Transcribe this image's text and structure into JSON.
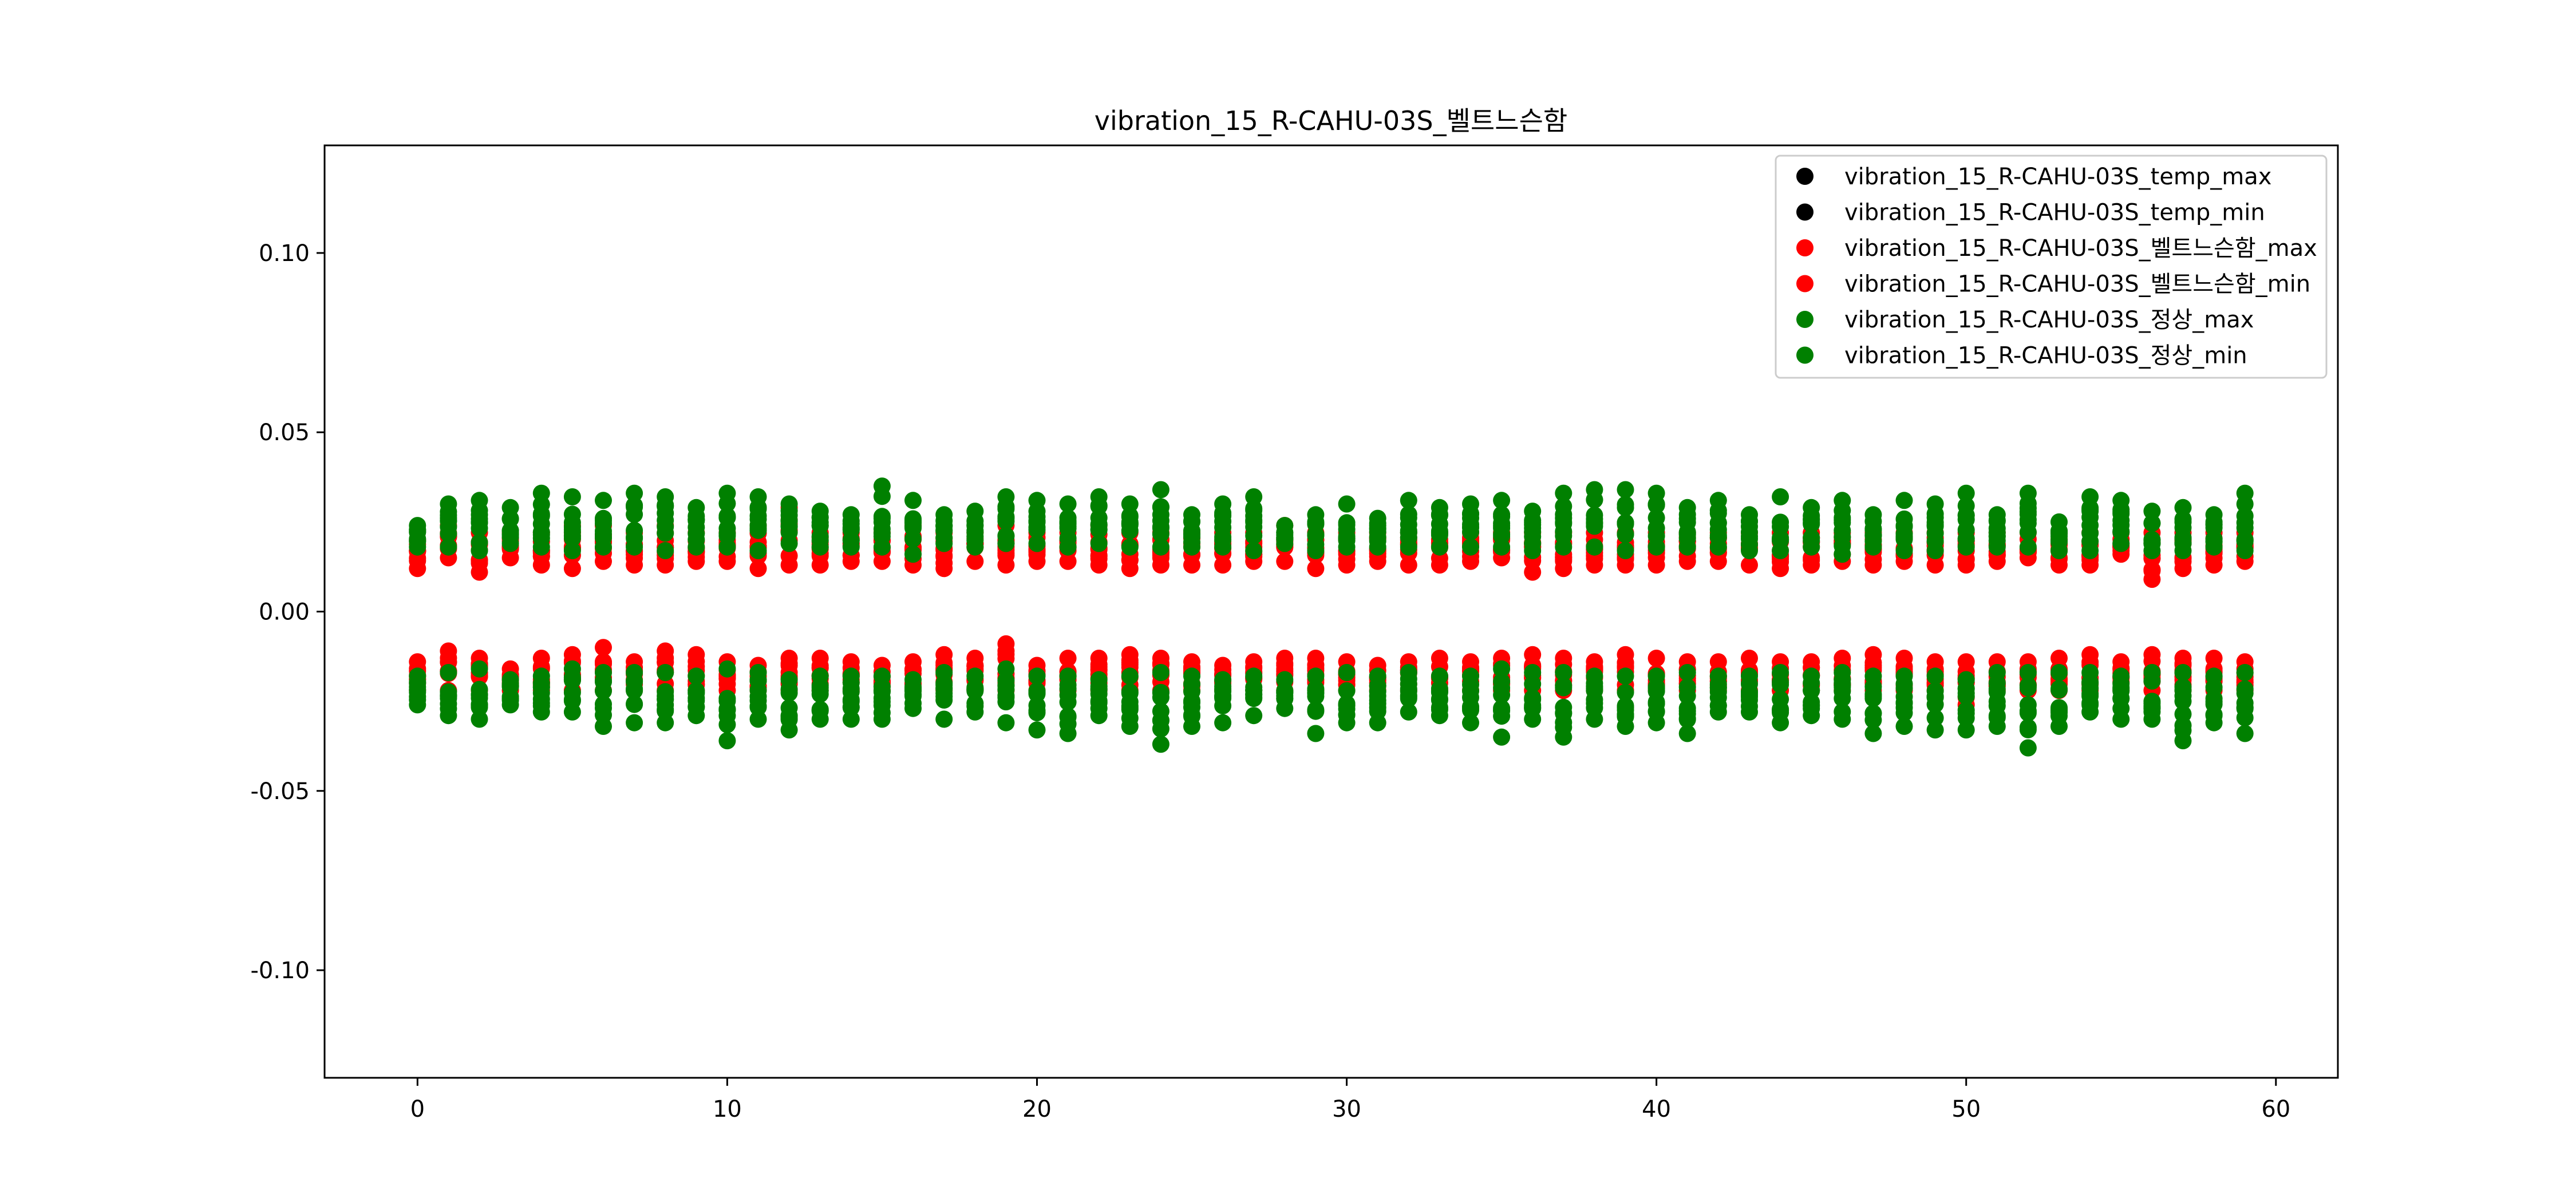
{
  "chart_data": {
    "type": "scatter",
    "title": "vibration_15_R-CAHU-03S_벨트느슨함",
    "xlabel": "",
    "ylabel": "",
    "xlim": [
      -3,
      62
    ],
    "ylim": [
      -0.13,
      0.13
    ],
    "xticks": [
      0,
      10,
      20,
      30,
      40,
      50,
      60
    ],
    "yticks": [
      0.1,
      0.05,
      0.0,
      -0.05,
      -0.1
    ],
    "ytick_labels": [
      "0.10",
      "0.05",
      "0.00",
      "-0.05",
      "-0.10"
    ],
    "grid": false,
    "legend_placement": "upper right",
    "x": [
      0,
      1,
      2,
      3,
      4,
      5,
      6,
      7,
      8,
      9,
      10,
      11,
      12,
      13,
      14,
      15,
      16,
      17,
      18,
      19,
      20,
      21,
      22,
      23,
      24,
      25,
      26,
      27,
      28,
      29,
      30,
      31,
      32,
      33,
      34,
      35,
      36,
      37,
      38,
      39,
      40,
      41,
      42,
      43,
      44,
      45,
      46,
      47,
      48,
      49,
      50,
      51,
      52,
      53,
      54,
      55,
      56,
      57,
      58,
      59
    ],
    "series": [
      {
        "name": "vibration_15_R-CAHU-03S_temp_max",
        "color": "#000000",
        "role": "temp",
        "values": []
      },
      {
        "name": "vibration_15_R-CAHU-03S_temp_min",
        "color": "#000000",
        "role": "temp",
        "values": []
      },
      {
        "name": "vibration_15_R-CAHU-03S_벨트느슨함_max",
        "color": "#ff0000",
        "role": "fault_max",
        "ranges": [
          [
            0.012,
            0.02
          ],
          [
            0.015,
            0.024
          ],
          [
            0.011,
            0.022
          ],
          [
            0.015,
            0.022
          ],
          [
            0.013,
            0.022
          ],
          [
            0.012,
            0.024
          ],
          [
            0.014,
            0.024
          ],
          [
            0.013,
            0.022
          ],
          [
            0.013,
            0.024
          ],
          [
            0.014,
            0.022
          ],
          [
            0.014,
            0.022
          ],
          [
            0.012,
            0.024
          ],
          [
            0.013,
            0.029
          ],
          [
            0.013,
            0.022
          ],
          [
            0.014,
            0.022
          ],
          [
            0.014,
            0.022
          ],
          [
            0.013,
            0.024
          ],
          [
            0.012,
            0.022
          ],
          [
            0.014,
            0.022
          ],
          [
            0.013,
            0.024
          ],
          [
            0.014,
            0.022
          ],
          [
            0.014,
            0.022
          ],
          [
            0.013,
            0.024
          ],
          [
            0.012,
            0.022
          ],
          [
            0.013,
            0.022
          ],
          [
            0.013,
            0.022
          ],
          [
            0.013,
            0.022
          ],
          [
            0.014,
            0.022
          ],
          [
            0.014,
            0.024
          ],
          [
            0.012,
            0.022
          ],
          [
            0.013,
            0.022
          ],
          [
            0.014,
            0.022
          ],
          [
            0.013,
            0.022
          ],
          [
            0.013,
            0.022
          ],
          [
            0.014,
            0.022
          ],
          [
            0.015,
            0.022
          ],
          [
            0.011,
            0.022
          ],
          [
            0.012,
            0.022
          ],
          [
            0.013,
            0.022
          ],
          [
            0.013,
            0.022
          ],
          [
            0.013,
            0.022
          ],
          [
            0.014,
            0.022
          ],
          [
            0.014,
            0.022
          ],
          [
            0.013,
            0.022
          ],
          [
            0.012,
            0.022
          ],
          [
            0.013,
            0.022
          ],
          [
            0.014,
            0.022
          ],
          [
            0.013,
            0.022
          ],
          [
            0.014,
            0.022
          ],
          [
            0.013,
            0.022
          ],
          [
            0.013,
            0.022
          ],
          [
            0.014,
            0.022
          ],
          [
            0.015,
            0.022
          ],
          [
            0.013,
            0.022
          ],
          [
            0.013,
            0.022
          ],
          [
            0.016,
            0.022
          ],
          [
            0.009,
            0.022
          ],
          [
            0.012,
            0.022
          ],
          [
            0.013,
            0.022
          ],
          [
            0.014,
            0.022
          ]
        ]
      },
      {
        "name": "vibration_15_R-CAHU-03S_벨트느슨함_min",
        "color": "#ff0000",
        "role": "fault_min",
        "ranges": [
          [
            -0.022,
            -0.014
          ],
          [
            -0.022,
            -0.011
          ],
          [
            -0.022,
            -0.013
          ],
          [
            -0.022,
            -0.016
          ],
          [
            -0.022,
            -0.013
          ],
          [
            -0.022,
            -0.012
          ],
          [
            -0.022,
            -0.01
          ],
          [
            -0.022,
            -0.014
          ],
          [
            -0.022,
            -0.011
          ],
          [
            -0.022,
            -0.012
          ],
          [
            -0.022,
            -0.014
          ],
          [
            -0.022,
            -0.015
          ],
          [
            -0.022,
            -0.013
          ],
          [
            -0.022,
            -0.013
          ],
          [
            -0.022,
            -0.014
          ],
          [
            -0.022,
            -0.015
          ],
          [
            -0.022,
            -0.014
          ],
          [
            -0.022,
            -0.012
          ],
          [
            -0.022,
            -0.013
          ],
          [
            -0.022,
            -0.009
          ],
          [
            -0.022,
            -0.015
          ],
          [
            -0.022,
            -0.013
          ],
          [
            -0.022,
            -0.013
          ],
          [
            -0.022,
            -0.012
          ],
          [
            -0.022,
            -0.013
          ],
          [
            -0.022,
            -0.014
          ],
          [
            -0.022,
            -0.015
          ],
          [
            -0.022,
            -0.014
          ],
          [
            -0.022,
            -0.013
          ],
          [
            -0.022,
            -0.013
          ],
          [
            -0.022,
            -0.014
          ],
          [
            -0.022,
            -0.015
          ],
          [
            -0.022,
            -0.014
          ],
          [
            -0.022,
            -0.013
          ],
          [
            -0.022,
            -0.014
          ],
          [
            -0.022,
            -0.013
          ],
          [
            -0.022,
            -0.012
          ],
          [
            -0.022,
            -0.013
          ],
          [
            -0.022,
            -0.014
          ],
          [
            -0.022,
            -0.012
          ],
          [
            -0.022,
            -0.013
          ],
          [
            -0.022,
            -0.014
          ],
          [
            -0.022,
            -0.014
          ],
          [
            -0.022,
            -0.013
          ],
          [
            -0.022,
            -0.014
          ],
          [
            -0.022,
            -0.014
          ],
          [
            -0.022,
            -0.013
          ],
          [
            -0.022,
            -0.012
          ],
          [
            -0.022,
            -0.013
          ],
          [
            -0.022,
            -0.014
          ],
          [
            -0.026,
            -0.014
          ],
          [
            -0.022,
            -0.014
          ],
          [
            -0.022,
            -0.014
          ],
          [
            -0.022,
            -0.013
          ],
          [
            -0.022,
            -0.012
          ],
          [
            -0.022,
            -0.014
          ],
          [
            -0.022,
            -0.012
          ],
          [
            -0.022,
            -0.013
          ],
          [
            -0.022,
            -0.013
          ],
          [
            -0.022,
            -0.014
          ]
        ]
      },
      {
        "name": "vibration_15_R-CAHU-03S_정상_max",
        "color": "#008000",
        "role": "normal_max",
        "ranges": [
          [
            0.018,
            0.024
          ],
          [
            0.018,
            0.03
          ],
          [
            0.017,
            0.031
          ],
          [
            0.019,
            0.029
          ],
          [
            0.018,
            0.033
          ],
          [
            0.017,
            0.032
          ],
          [
            0.018,
            0.031
          ],
          [
            0.018,
            0.033
          ],
          [
            0.017,
            0.032
          ],
          [
            0.018,
            0.029
          ],
          [
            0.018,
            0.033
          ],
          [
            0.017,
            0.032
          ],
          [
            0.019,
            0.03
          ],
          [
            0.018,
            0.028
          ],
          [
            0.018,
            0.027
          ],
          [
            0.018,
            0.035
          ],
          [
            0.016,
            0.031
          ],
          [
            0.019,
            0.027
          ],
          [
            0.018,
            0.028
          ],
          [
            0.019,
            0.032
          ],
          [
            0.019,
            0.031
          ],
          [
            0.018,
            0.03
          ],
          [
            0.019,
            0.032
          ],
          [
            0.018,
            0.03
          ],
          [
            0.018,
            0.034
          ],
          [
            0.018,
            0.027
          ],
          [
            0.018,
            0.03
          ],
          [
            0.017,
            0.032
          ],
          [
            0.019,
            0.024
          ],
          [
            0.017,
            0.027
          ],
          [
            0.018,
            0.03
          ],
          [
            0.018,
            0.026
          ],
          [
            0.018,
            0.031
          ],
          [
            0.018,
            0.029
          ],
          [
            0.018,
            0.03
          ],
          [
            0.018,
            0.031
          ],
          [
            0.017,
            0.028
          ],
          [
            0.018,
            0.033
          ],
          [
            0.018,
            0.034
          ],
          [
            0.017,
            0.034
          ],
          [
            0.018,
            0.033
          ],
          [
            0.018,
            0.029
          ],
          [
            0.018,
            0.031
          ],
          [
            0.017,
            0.027
          ],
          [
            0.017,
            0.032
          ],
          [
            0.018,
            0.029
          ],
          [
            0.016,
            0.031
          ],
          [
            0.018,
            0.027
          ],
          [
            0.017,
            0.031
          ],
          [
            0.017,
            0.03
          ],
          [
            0.018,
            0.033
          ],
          [
            0.018,
            0.027
          ],
          [
            0.018,
            0.033
          ],
          [
            0.017,
            0.025
          ],
          [
            0.017,
            0.032
          ],
          [
            0.019,
            0.031
          ],
          [
            0.017,
            0.028
          ],
          [
            0.017,
            0.029
          ],
          [
            0.018,
            0.027
          ],
          [
            0.017,
            0.033
          ]
        ]
      },
      {
        "name": "vibration_15_R-CAHU-03S_정상_min",
        "color": "#008000",
        "role": "normal_min",
        "ranges": [
          [
            -0.026,
            -0.018
          ],
          [
            -0.029,
            -0.017
          ],
          [
            -0.03,
            -0.016
          ],
          [
            -0.026,
            -0.019
          ],
          [
            -0.028,
            -0.018
          ],
          [
            -0.028,
            -0.016
          ],
          [
            -0.032,
            -0.017
          ],
          [
            -0.031,
            -0.017
          ],
          [
            -0.031,
            -0.017
          ],
          [
            -0.029,
            -0.018
          ],
          [
            -0.036,
            -0.016
          ],
          [
            -0.03,
            -0.017
          ],
          [
            -0.033,
            -0.019
          ],
          [
            -0.03,
            -0.018
          ],
          [
            -0.03,
            -0.018
          ],
          [
            -0.03,
            -0.018
          ],
          [
            -0.027,
            -0.019
          ],
          [
            -0.03,
            -0.017
          ],
          [
            -0.028,
            -0.018
          ],
          [
            -0.031,
            -0.016
          ],
          [
            -0.033,
            -0.018
          ],
          [
            -0.034,
            -0.018
          ],
          [
            -0.029,
            -0.019
          ],
          [
            -0.032,
            -0.018
          ],
          [
            -0.037,
            -0.017
          ],
          [
            -0.032,
            -0.018
          ],
          [
            -0.031,
            -0.019
          ],
          [
            -0.029,
            -0.018
          ],
          [
            -0.027,
            -0.019
          ],
          [
            -0.034,
            -0.018
          ],
          [
            -0.031,
            -0.017
          ],
          [
            -0.031,
            -0.018
          ],
          [
            -0.028,
            -0.017
          ],
          [
            -0.029,
            -0.018
          ],
          [
            -0.031,
            -0.018
          ],
          [
            -0.035,
            -0.016
          ],
          [
            -0.03,
            -0.017
          ],
          [
            -0.035,
            -0.017
          ],
          [
            -0.03,
            -0.018
          ],
          [
            -0.032,
            -0.018
          ],
          [
            -0.031,
            -0.018
          ],
          [
            -0.034,
            -0.017
          ],
          [
            -0.028,
            -0.018
          ],
          [
            -0.028,
            -0.018
          ],
          [
            -0.031,
            -0.017
          ],
          [
            -0.029,
            -0.018
          ],
          [
            -0.03,
            -0.017
          ],
          [
            -0.034,
            -0.018
          ],
          [
            -0.032,
            -0.018
          ],
          [
            -0.033,
            -0.018
          ],
          [
            -0.033,
            -0.019
          ],
          [
            -0.032,
            -0.017
          ],
          [
            -0.038,
            -0.017
          ],
          [
            -0.032,
            -0.017
          ],
          [
            -0.028,
            -0.017
          ],
          [
            -0.03,
            -0.018
          ],
          [
            -0.03,
            -0.017
          ],
          [
            -0.036,
            -0.017
          ],
          [
            -0.031,
            -0.018
          ],
          [
            -0.034,
            -0.017
          ]
        ]
      }
    ]
  }
}
